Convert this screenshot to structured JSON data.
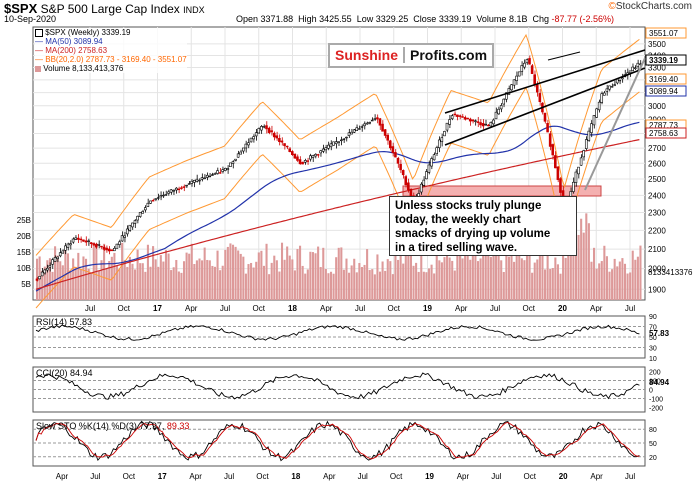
{
  "header": {
    "ticker": "$SPX",
    "name": "S&P 500 Large Cap Index",
    "exchange": "INDX",
    "date": "10-Sep-2020",
    "open_label": "Open",
    "open": "3371.88",
    "high_label": "High",
    "high": "3425.55",
    "low_label": "Low",
    "low": "3329.25",
    "close_label": "Close",
    "close": "3339.19",
    "volume_label": "Volume",
    "volume": "8.1B",
    "chg_label": "Chg",
    "chg": "-87.77 (-2.56%)",
    "brand_prefix": "©",
    "brand": "StockCharts.com"
  },
  "legend": {
    "spx": "$SPX (Weekly) 3339.19",
    "ma50": "MA(50) 3089.94",
    "ma200": "MA(200) 2758.63",
    "bb": "BB(20,2.0) 2787.73 - 3169.40 - 3551.07",
    "volume": "Volume 8,133,413,376"
  },
  "logo": {
    "part1": "Sunshine",
    "part2": "Profits.com"
  },
  "annotation": {
    "lines": [
      "Unless stocks truly plunge",
      "today, the weekly chart",
      "smacks of drying up volume",
      "in a tired selling wave."
    ]
  },
  "colors": {
    "up": "#000000",
    "down": "#cc0000",
    "ma50": "#2233aa",
    "ma200": "#cc2222",
    "bb": "#ff9933",
    "volume": "#dd9999",
    "support_zone": "#f4b0b0",
    "rsi_fill": "#66aa66",
    "cci_pos": "#66aa66",
    "cci_neg": "#aa4444",
    "sto_k": "#000000",
    "sto_d": "#cc0000"
  },
  "panels": {
    "rsi": {
      "label": "RSI(14) 57.83",
      "current": "57.83",
      "ticks": [
        "90",
        "70",
        "50",
        "30",
        "10"
      ]
    },
    "cci": {
      "label": "CCI(20) 84.94",
      "current": "84.94",
      "ticks": [
        "200",
        "100",
        "0",
        "-100",
        "-200"
      ]
    },
    "sto": {
      "label_k": "Slow STO %K(14) %D(3) 77.97,",
      "label_d": "89.33",
      "current_k": "77.97",
      "current_d": "89.33",
      "ticks": [
        "80",
        "50",
        "20"
      ]
    }
  },
  "chart_data": {
    "type": "candlestick",
    "period": "weekly",
    "y_axis": {
      "scale": "log",
      "ticks": [
        "3500",
        "3400",
        "3300",
        "3200",
        "3100",
        "3000",
        "2900",
        "2800",
        "2700",
        "2600",
        "2500",
        "2400",
        "2300",
        "2200",
        "2100",
        "2000",
        "1900"
      ],
      "ylim": [
        1850,
        3650
      ]
    },
    "y_markers": [
      {
        "label": "3551.07",
        "series": "BB upper"
      },
      {
        "label": "3339.19",
        "series": "Close"
      },
      {
        "label": "3169.40",
        "series": "BB mid"
      },
      {
        "label": "3089.94",
        "series": "MA(50)"
      },
      {
        "label": "2787.73",
        "series": "BB lower"
      },
      {
        "label": "2758.63",
        "series": "MA(200)"
      }
    ],
    "volume_axis": {
      "ticks": [
        "25B",
        "20B",
        "15B",
        "10B",
        "5B"
      ],
      "current_label": "8133413376"
    },
    "x_axis": {
      "tick_labels": [
        "Jul",
        "Oct",
        "17",
        "Apr",
        "Jul",
        "Oct",
        "18",
        "Apr",
        "Jul",
        "Oct",
        "19",
        "Apr",
        "Jul",
        "Oct",
        "20",
        "Apr",
        "Jul"
      ],
      "bottom_tick_labels": [
        "Apr",
        "Jul",
        "Oct",
        "17",
        "Apr",
        "Jul",
        "Oct",
        "18",
        "Apr",
        "Jul",
        "Oct",
        "19",
        "Apr",
        "Jul",
        "Oct",
        "20",
        "Apr",
        "Jul"
      ]
    },
    "price_path_approx": [
      {
        "date": "2016-03",
        "close": 1950
      },
      {
        "date": "2016-07",
        "close": 2160
      },
      {
        "date": "2016-11",
        "close": 2090
      },
      {
        "date": "2017-03",
        "close": 2370
      },
      {
        "date": "2017-07",
        "close": 2470
      },
      {
        "date": "2017-10",
        "close": 2560
      },
      {
        "date": "2018-01",
        "close": 2860
      },
      {
        "date": "2018-02",
        "close": 2600
      },
      {
        "date": "2018-06",
        "close": 2750
      },
      {
        "date": "2018-09",
        "close": 2920
      },
      {
        "date": "2018-12",
        "close": 2350
      },
      {
        "date": "2019-04",
        "close": 2940
      },
      {
        "date": "2019-08",
        "close": 2850
      },
      {
        "date": "2020-02",
        "close": 3380
      },
      {
        "date": "2020-03",
        "close": 2300
      },
      {
        "date": "2020-06",
        "close": 3100
      },
      {
        "date": "2020-09",
        "close": 3339
      }
    ],
    "series": [
      {
        "name": "$SPX (Weekly)",
        "last": 3339.19
      },
      {
        "name": "MA(50)",
        "last": 3089.94
      },
      {
        "name": "MA(200)",
        "last": 2758.63
      },
      {
        "name": "BB(20,2.0)",
        "upper": 3551.07,
        "mid": 3169.4,
        "lower": 2787.73
      },
      {
        "name": "Volume",
        "last": 8133413376
      }
    ]
  }
}
